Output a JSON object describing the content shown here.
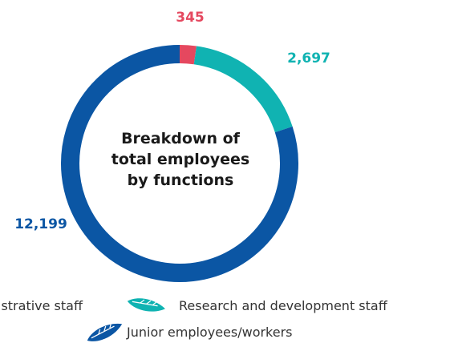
{
  "chart_data": {
    "type": "pie",
    "title": "Breakdown of total employees by functions",
    "title_lines": [
      "Breakdown of",
      "total employees",
      "by functions"
    ],
    "categories": [
      "Administrative staff",
      "Research and development staff",
      "Junior employees/workers"
    ],
    "legend_visible_text": [
      "istrative staff",
      "Research and development staff",
      "Junior employees/workers"
    ],
    "values": [
      345,
      2697,
      12199
    ],
    "value_labels": [
      "345",
      "2,697",
      "12,199"
    ],
    "colors": [
      "#e5485f",
      "#10b3b2",
      "#0b56a4"
    ],
    "legend_icons": [
      "leaf-icon",
      "leaf-icon",
      "leaf-icon"
    ],
    "legend_placement": "bottom",
    "style": "donut"
  }
}
